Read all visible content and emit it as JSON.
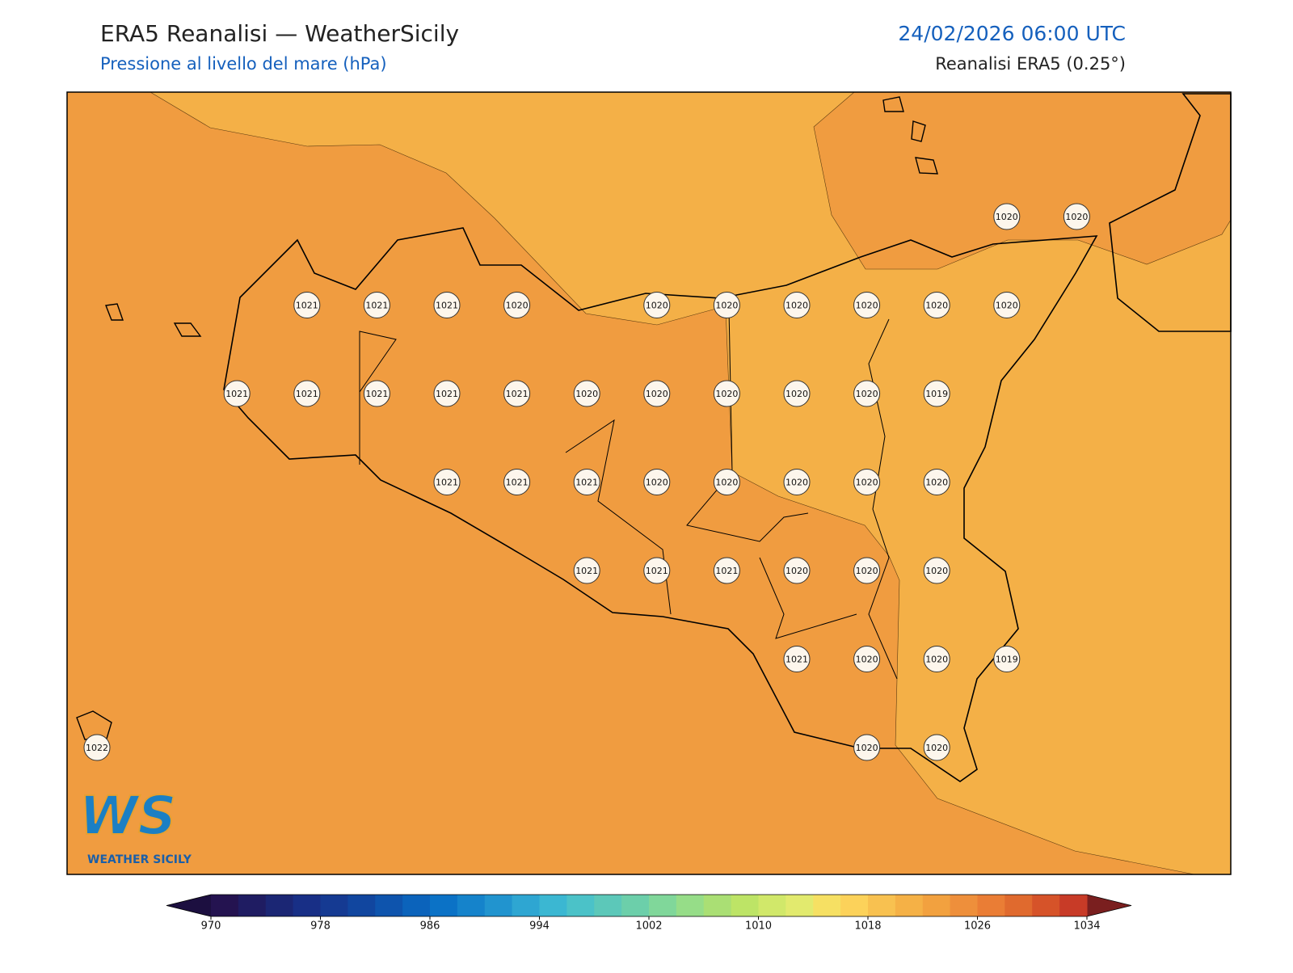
{
  "header": {
    "title": "ERA5 Reanalisi — WeatherSicily",
    "subtitle": "Pressione al livello del mare (hPa)",
    "date": "24/02/2026 06:00 UTC",
    "source": "Reanalisi ERA5 (0.25°)"
  },
  "logo": {
    "mark": "WS",
    "text": "WEATHER SICILY"
  },
  "stations": [
    [
      null,
      null,
      null,
      null,
      null,
      null,
      null,
      null,
      null,
      null,
      null,
      null,
      null,
      1020,
      1020
    ],
    [
      null,
      null,
      null,
      1021,
      1021,
      1021,
      1020,
      null,
      1020,
      1020,
      1020,
      1020,
      1020,
      1020,
      null
    ],
    [
      null,
      null,
      1021,
      1021,
      1021,
      1021,
      1021,
      1020,
      1020,
      1020,
      1020,
      1020,
      1019,
      null,
      null
    ],
    [
      null,
      null,
      null,
      null,
      null,
      1021,
      1021,
      1021,
      1020,
      1020,
      1020,
      1020,
      1020,
      null,
      null
    ],
    [
      null,
      null,
      null,
      null,
      null,
      null,
      null,
      1021,
      1021,
      1021,
      1020,
      1020,
      1020,
      null,
      null
    ],
    [
      null,
      null,
      null,
      null,
      null,
      null,
      null,
      null,
      null,
      null,
      1021,
      1020,
      1020,
      1019,
      null
    ],
    [
      1022,
      null,
      null,
      null,
      null,
      null,
      null,
      null,
      null,
      null,
      null,
      1020,
      1020,
      null,
      null
    ]
  ],
  "colorbar": {
    "range": [
      970,
      1034
    ],
    "ticks": [
      970,
      978,
      986,
      994,
      1002,
      1010,
      1018,
      1026,
      1034
    ],
    "under": "#1c0f40",
    "over": "#7a1f1f",
    "colors": [
      "#241350",
      "#1f1c62",
      "#1b2674",
      "#182f86",
      "#153a92",
      "#11469f",
      "#0e54ad",
      "#0b63bb",
      "#0b72c6",
      "#1583cb",
      "#2194cf",
      "#2ea6d2",
      "#3bb7d2",
      "#4bc2c8",
      "#5cc8b9",
      "#6ccfaa",
      "#80d79a",
      "#96dd88",
      "#aadf74",
      "#bde466",
      "#d1e86a",
      "#e2ea6e",
      "#f6e063",
      "#fcd25a",
      "#f8c150",
      "#f5b146",
      "#f2a13f",
      "#ee8f3b",
      "#ea7d35",
      "#e06a2e",
      "#d65329",
      "#c83b27"
    ]
  }
}
